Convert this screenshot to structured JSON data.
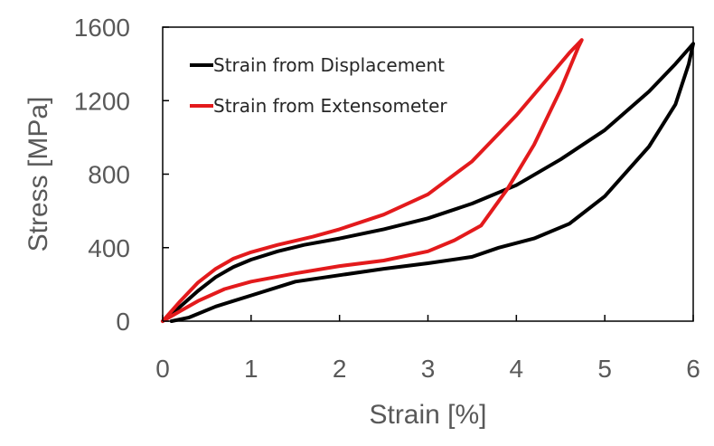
{
  "chart_data": {
    "type": "line",
    "title": "",
    "xlabel": "Strain [%]",
    "ylabel": "Stress [MPa]",
    "xlim": [
      0,
      6
    ],
    "ylim": [
      0,
      1600
    ],
    "xticks": [
      0,
      1,
      2,
      3,
      4,
      5,
      6
    ],
    "yticks": [
      0,
      400,
      800,
      1200,
      1600
    ],
    "grid": false,
    "legend_position": "top-left",
    "series": [
      {
        "name": "Strain from Displacement",
        "color": "#000000",
        "x": [
          0.0,
          0.2,
          0.4,
          0.6,
          0.8,
          1.0,
          1.3,
          1.6,
          2.0,
          2.5,
          3.0,
          3.5,
          4.0,
          4.5,
          5.0,
          5.5,
          5.8,
          6.0,
          5.95,
          5.8,
          5.5,
          5.0,
          4.6,
          4.2,
          3.8,
          3.5,
          3.0,
          2.5,
          2.0,
          1.5,
          1.0,
          0.6,
          0.3,
          0.1
        ],
        "y": [
          0,
          80,
          165,
          240,
          295,
          335,
          380,
          415,
          450,
          500,
          560,
          640,
          740,
          880,
          1040,
          1250,
          1400,
          1510,
          1400,
          1180,
          950,
          680,
          530,
          450,
          400,
          350,
          315,
          285,
          250,
          215,
          140,
          80,
          20,
          0
        ]
      },
      {
        "name": "Strain from Extensometer",
        "color": "#e31a1c",
        "x": [
          0.0,
          0.2,
          0.4,
          0.6,
          0.8,
          1.0,
          1.3,
          1.7,
          2.0,
          2.5,
          3.0,
          3.5,
          4.0,
          4.3,
          4.6,
          4.74,
          4.7,
          4.5,
          4.2,
          3.9,
          3.6,
          3.3,
          3.0,
          2.5,
          2.0,
          1.5,
          1.0,
          0.7,
          0.4,
          0.2,
          0.0
        ],
        "y": [
          0,
          110,
          210,
          285,
          340,
          375,
          415,
          460,
          500,
          580,
          690,
          870,
          1120,
          1290,
          1460,
          1530,
          1490,
          1260,
          960,
          720,
          520,
          440,
          380,
          330,
          300,
          260,
          215,
          175,
          110,
          55,
          0
        ]
      }
    ]
  }
}
